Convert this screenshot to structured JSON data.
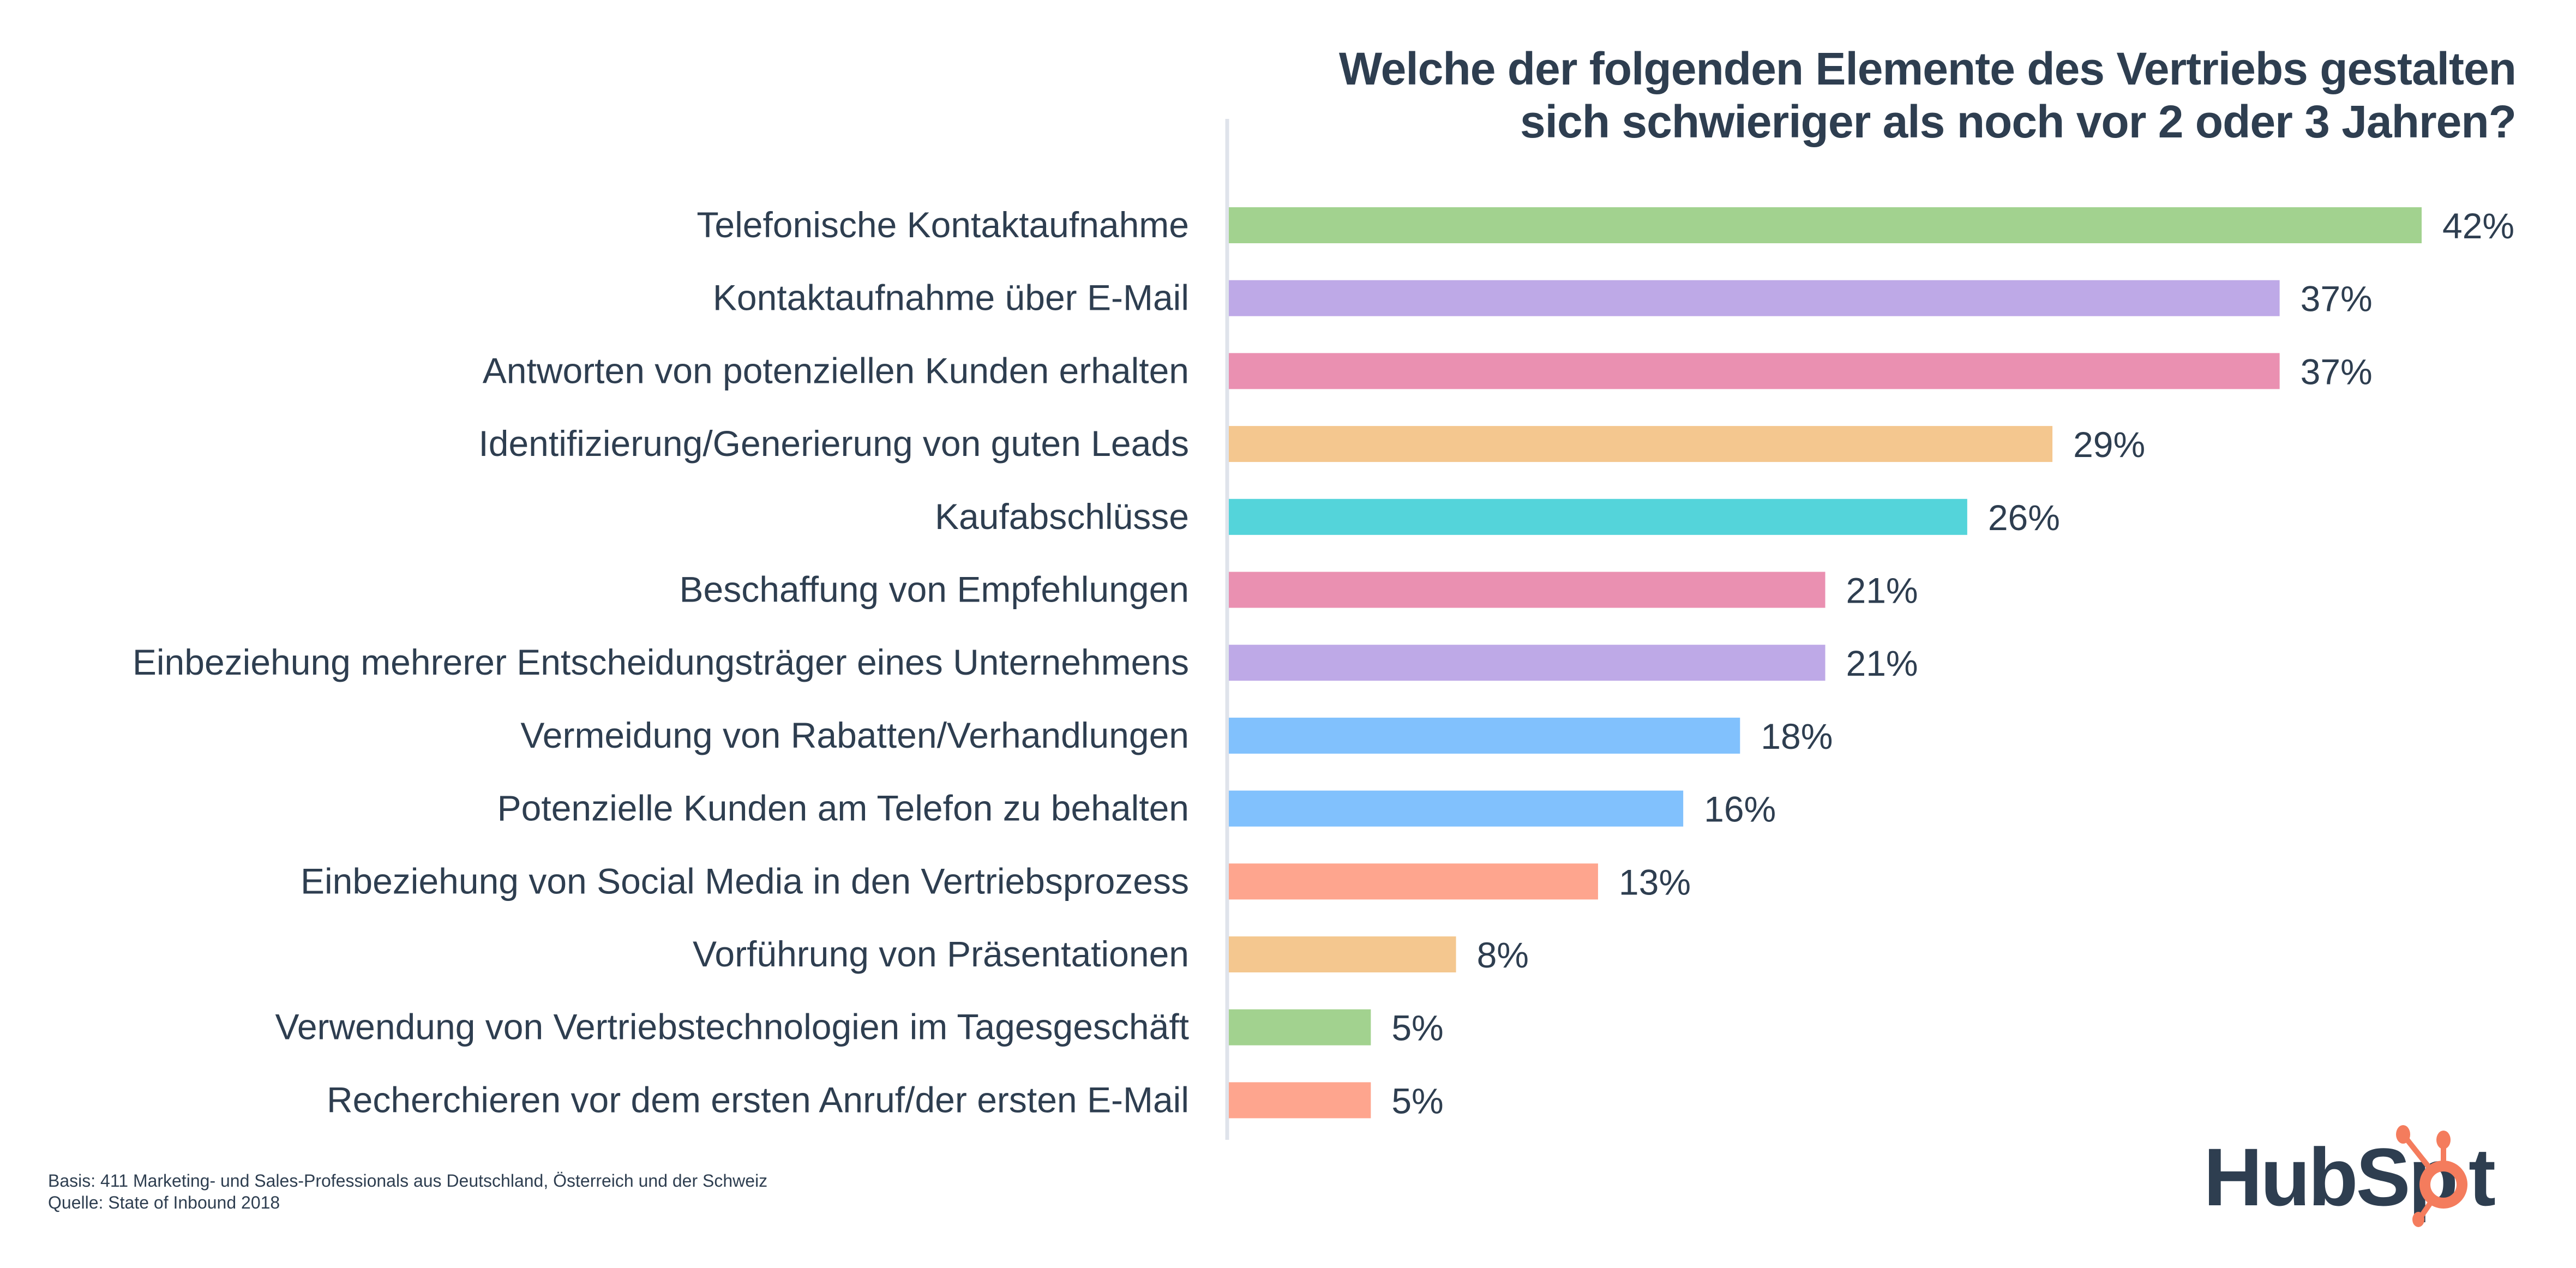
{
  "title": {
    "line1": "Welche der folgenden Elemente des Vertriebs gestalten",
    "line2": "sich schwieriger als noch vor 2 oder 3 Jahren?"
  },
  "chart_data": {
    "type": "bar",
    "orientation": "horizontal",
    "title": "Welche der folgenden Elemente des Vertriebs gestalten sich schwieriger als noch vor 2 oder 3 Jahren?",
    "xlabel": "",
    "ylabel": "",
    "xlim": [
      0,
      42
    ],
    "grid": false,
    "value_suffix": "%",
    "categories": [
      "Telefonische Kontaktaufnahme",
      "Kontaktaufnahme über E-Mail",
      "Antworten von potenziellen Kunden erhalten",
      "Identifizierung/Generierung von guten Leads",
      "Kaufabschlüsse",
      "Beschaffung von Empfehlungen",
      "Einbeziehung mehrerer Entscheidungsträger eines Unternehmens",
      "Vermeidung von Rabatten/Verhandlungen",
      "Potenzielle Kunden am Telefon zu behalten",
      "Einbeziehung von Social Media in den Vertriebsprozess",
      "Vorführung von Präsentationen",
      "Verwendung von Vertriebstechnologien im Tagesgeschäft",
      "Recherchieren vor dem ersten Anruf/der ersten E-Mail"
    ],
    "values": [
      42,
      37,
      37,
      29,
      26,
      21,
      21,
      18,
      16,
      13,
      8,
      5,
      5
    ],
    "value_labels": [
      "42%",
      "37%",
      "37%",
      "29%",
      "26%",
      "21%",
      "21%",
      "18%",
      "16%",
      "13%",
      "8%",
      "5%",
      "5%"
    ],
    "colors": [
      "#a2d28f",
      "#bea9e7",
      "#ea90b1",
      "#f4c78f",
      "#54d4da",
      "#ea90b1",
      "#bea9e7",
      "#81c1fd",
      "#81c1fd",
      "#fea58e",
      "#f4c78f",
      "#a2d28f",
      "#fea58e"
    ]
  },
  "footnote": {
    "basis": "Basis: 411 Marketing- und Sales-Professionals aus Deutschland, Österreich und der Schweiz",
    "source": "Quelle: State of Inbound 2018"
  },
  "logo": {
    "text_part1": "HubSp",
    "text_part2": "t",
    "icon": "sprocket-icon",
    "colors": {
      "text": "#2e3e50",
      "accent": "#f47c5d"
    }
  },
  "colors": {
    "axis": "#dfe3eb",
    "text": "#2e3e50"
  }
}
